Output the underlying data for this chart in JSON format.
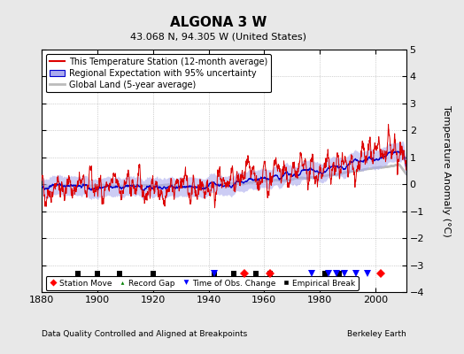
{
  "title": "ALGONA 3 W",
  "subtitle": "43.068 N, 94.305 W (United States)",
  "xlabel_bottom": "Data Quality Controlled and Aligned at Breakpoints",
  "xlabel_right": "Berkeley Earth",
  "ylabel": "Temperature Anomaly (°C)",
  "ylim": [
    -4,
    5
  ],
  "xlim": [
    1880,
    2011
  ],
  "yticks": [
    -4,
    -3,
    -2,
    -1,
    0,
    1,
    2,
    3,
    4,
    5
  ],
  "xticks": [
    1880,
    1900,
    1920,
    1940,
    1960,
    1980,
    2000
  ],
  "background_color": "#e8e8e8",
  "plot_bg_color": "#ffffff",
  "station_color": "#dd0000",
  "regional_color": "#0000cc",
  "regional_fill_color": "#aaaaee",
  "global_color": "#bbbbbb",
  "seed": 42,
  "start_year": 1880,
  "end_year": 2011,
  "empirical_breaks": [
    1893,
    1900,
    1908,
    1920,
    1942,
    1949,
    1957,
    1962,
    1982,
    1987
  ],
  "station_moves": [
    1953,
    1962,
    2002
  ],
  "time_of_obs_changes": [
    1942,
    1977,
    1983,
    1986,
    1989,
    1993,
    1997
  ],
  "record_gaps": [],
  "marker_y": -3.3,
  "legend_entries": [
    "This Temperature Station (12-month average)",
    "Regional Expectation with 95% uncertainty",
    "Global Land (5-year average)"
  ]
}
